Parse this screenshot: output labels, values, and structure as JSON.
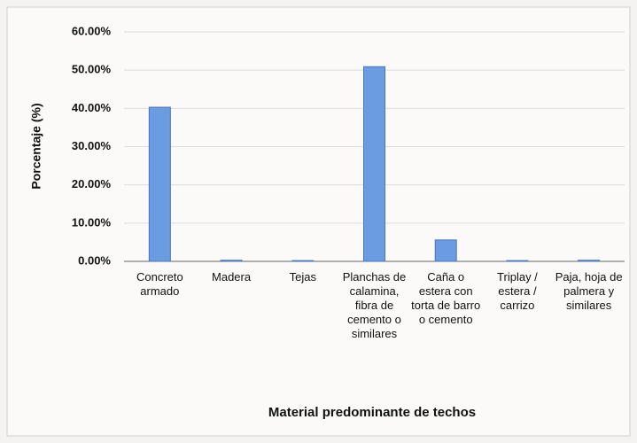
{
  "chart_data": {
    "type": "bar",
    "x_label": "Material predominante de techos",
    "y_label": "Porcentaje (%)",
    "categories": [
      "Concreto armado",
      "Madera",
      "Tejas",
      "Planchas de calamina, fibra de cemento o similares",
      "Caña o estera con torta de barro o cemento",
      "Triplay / estera / carrizo",
      "Paja, hoja de palmera y similares"
    ],
    "values": [
      40.3,
      0.3,
      0.2,
      50.9,
      5.6,
      0.2,
      0.3
    ],
    "color": "#6b9be0",
    "ylim": [
      0,
      60
    ],
    "yticks": [
      {
        "value": 0,
        "label": "0.00%"
      },
      {
        "value": 10,
        "label": "10.00%"
      },
      {
        "value": 20,
        "label": "20.00%"
      },
      {
        "value": 30,
        "label": "30.00%"
      },
      {
        "value": 40,
        "label": "40.00%"
      },
      {
        "value": 50,
        "label": "50.00%"
      },
      {
        "value": 60,
        "label": "60.00%"
      }
    ],
    "grid": true
  }
}
